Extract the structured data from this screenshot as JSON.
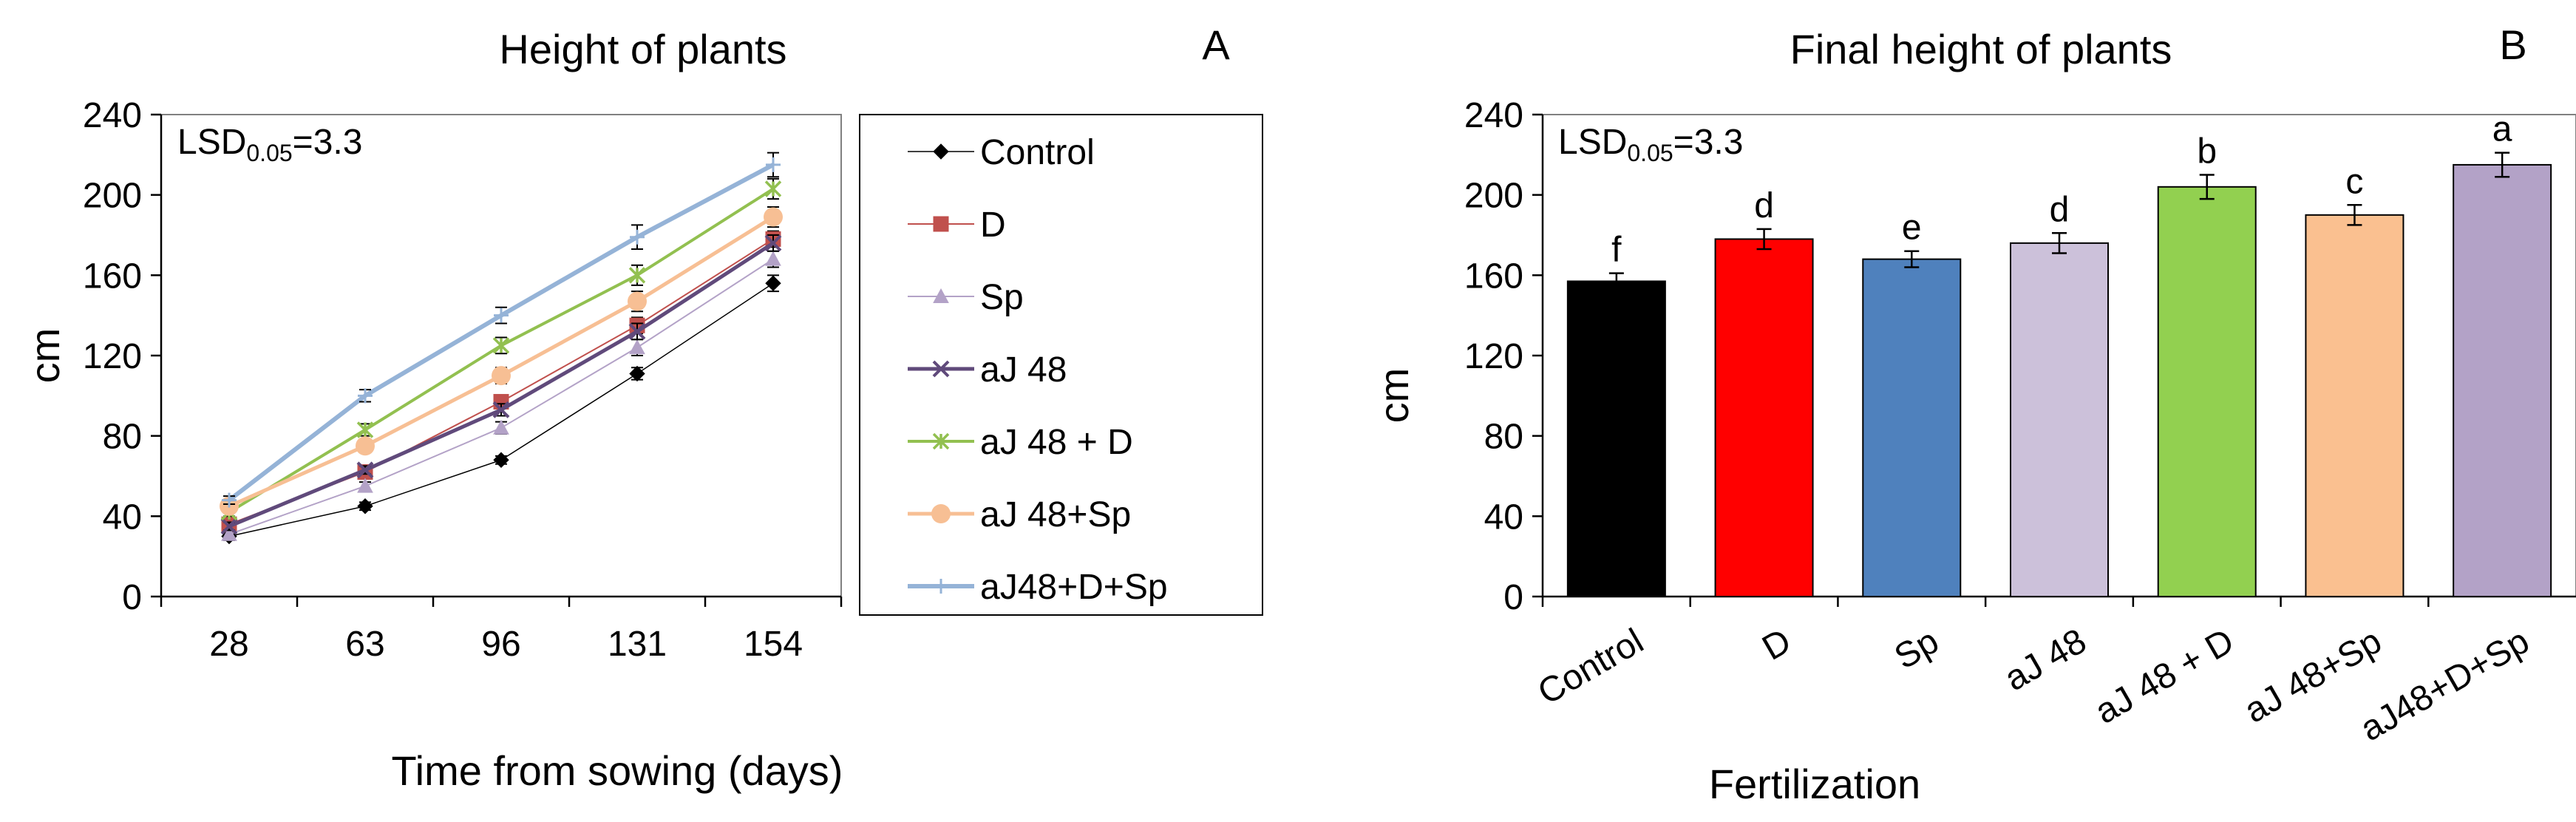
{
  "chart_data": [
    {
      "panel": "A",
      "type": "line",
      "title": "Height of plants",
      "xlabel": "Time from sowing (days)",
      "ylabel": "cm",
      "categories": [
        "28",
        "63",
        "96",
        "131",
        "154"
      ],
      "ylim": [
        0,
        240
      ],
      "yticks": [
        "0",
        "40",
        "80",
        "120",
        "160",
        "200",
        "240"
      ],
      "annotation": {
        "lsd_prefix": "LSD",
        "lsd_subscript": "0.05",
        "lsd_value": "=3.3"
      },
      "legend_position": "right",
      "series": [
        {
          "name": "Control",
          "color": "#000000",
          "marker": "diamond",
          "width": 1.5,
          "values": [
            30,
            45,
            68,
            111,
            156
          ],
          "errors": [
            2,
            2,
            2,
            3,
            4
          ]
        },
        {
          "name": "D",
          "color": "#c0504d",
          "marker": "square",
          "width": 2,
          "values": [
            36,
            62,
            97,
            135,
            178
          ],
          "errors": [
            2,
            2,
            3,
            4,
            4
          ]
        },
        {
          "name": "Sp",
          "color": "#b3a2c7",
          "marker": "triangle",
          "width": 2,
          "values": [
            31,
            55,
            84,
            124,
            168
          ],
          "errors": [
            2,
            2,
            3,
            4,
            4
          ]
        },
        {
          "name": "aJ 48",
          "color": "#604a7b",
          "marker": "x",
          "width": 5,
          "values": [
            35,
            63,
            93,
            132,
            176
          ],
          "errors": [
            2,
            2,
            3,
            4,
            4
          ]
        },
        {
          "name": "aJ 48 + D",
          "color": "#92c050",
          "marker": "star",
          "width": 4,
          "values": [
            42,
            83,
            125,
            160,
            203
          ],
          "errors": [
            2,
            3,
            4,
            5,
            5
          ]
        },
        {
          "name": "aJ 48+Sp",
          "color": "#f7bf94",
          "marker": "circle",
          "width": 5,
          "values": [
            45,
            75,
            110,
            147,
            189
          ],
          "errors": [
            2,
            3,
            4,
            5,
            5
          ]
        },
        {
          "name": "aJ48+D+Sp",
          "color": "#95b3d7",
          "marker": "plus",
          "width": 6,
          "values": [
            48,
            100,
            140,
            179,
            215
          ],
          "errors": [
            2,
            3,
            4,
            6,
            6
          ]
        }
      ]
    },
    {
      "panel": "B",
      "type": "bar",
      "title": "Final height of plants",
      "xlabel": "Fertilization",
      "ylabel": "cm",
      "categories": [
        "Control",
        "D",
        "Sp",
        "aJ 48",
        "aJ 48 + D",
        "aJ 48+Sp",
        "aJ48+D+Sp"
      ],
      "values": [
        157,
        178,
        168,
        176,
        204,
        190,
        215
      ],
      "errors": [
        4,
        5,
        4,
        5,
        6,
        5,
        6
      ],
      "letters": [
        "f",
        "d",
        "e",
        "d",
        "b",
        "c",
        "a"
      ],
      "colors": [
        "#000000",
        "#ff0000",
        "#4f81bd",
        "#ccc1da",
        "#92d050",
        "#fac090",
        "#b3a2c7"
      ],
      "ylim": [
        0,
        240
      ],
      "yticks": [
        "0",
        "40",
        "80",
        "120",
        "160",
        "200",
        "240"
      ],
      "annotation": {
        "lsd_prefix": "LSD",
        "lsd_subscript": "0.05",
        "lsd_value": "=3.3"
      }
    }
  ]
}
